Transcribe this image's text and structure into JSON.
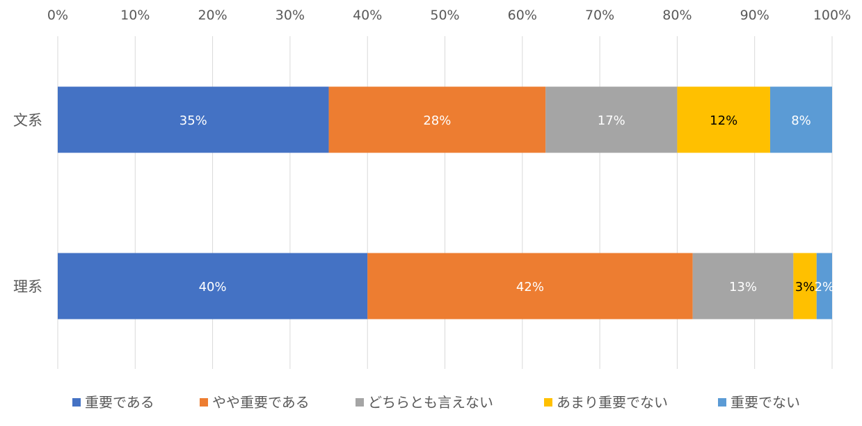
{
  "chart_data": {
    "type": "bar",
    "orientation": "horizontal",
    "stacked": true,
    "percent_stacked": true,
    "categories": [
      "文系",
      "理系"
    ],
    "series": [
      {
        "name": "重要である",
        "values": [
          35,
          40
        ],
        "labels": [
          "35%",
          "40%"
        ],
        "color": "#4472C4",
        "label_color": "#FFFFFF"
      },
      {
        "name": "やや重要である",
        "values": [
          28,
          42
        ],
        "labels": [
          "28%",
          "42%"
        ],
        "color": "#ED7D31",
        "label_color": "#FFFFFF"
      },
      {
        "name": "どちらとも言えない",
        "values": [
          17,
          13
        ],
        "labels": [
          "17%",
          "13%"
        ],
        "color": "#A5A5A5",
        "label_color": "#FFFFFF"
      },
      {
        "name": "あまり重要でない",
        "values": [
          12,
          3
        ],
        "labels": [
          "12%",
          "3%"
        ],
        "color": "#FFC000",
        "label_color": "#000000"
      },
      {
        "name": "重要でない",
        "values": [
          8,
          2
        ],
        "labels": [
          "8%",
          "2%"
        ],
        "color": "#5B9BD5",
        "label_color": "#FFFFFF"
      }
    ],
    "xlim": [
      0,
      100
    ],
    "x_ticks": [
      "0%",
      "10%",
      "20%",
      "30%",
      "40%",
      "50%",
      "60%",
      "70%",
      "80%",
      "90%",
      "100%"
    ],
    "x_axis_position": "top",
    "grid": true,
    "legend_position": "bottom",
    "title": "",
    "xlabel": "",
    "ylabel": ""
  }
}
